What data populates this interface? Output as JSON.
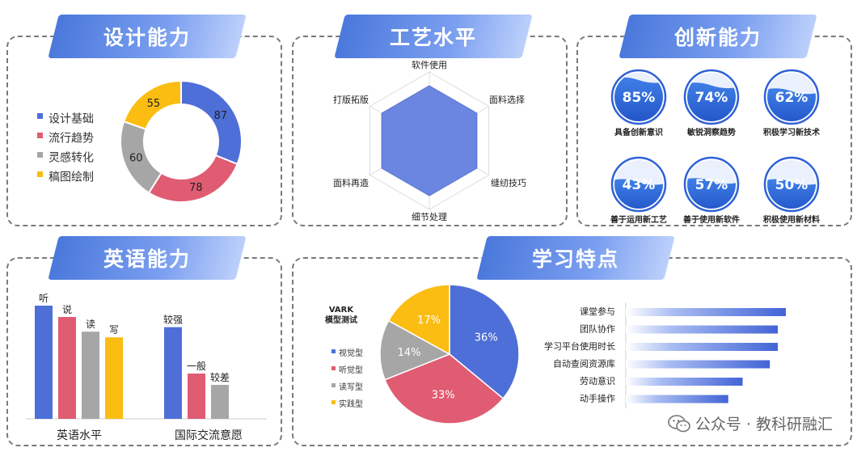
{
  "titles": {
    "design": "设计能力",
    "craft": "工艺水平",
    "innovation": "创新能力",
    "english": "英语能力",
    "learning": "学习特点"
  },
  "colors": {
    "blue": "#4e6fd8",
    "red": "#e05c72",
    "gray": "#a6a6a6",
    "yellow": "#fbbd12",
    "radar_fill": "#6b86e0"
  },
  "chart_data": [
    {
      "id": "design",
      "type": "pie",
      "donut": true,
      "categories": [
        "设计基础",
        "流行趋势",
        "灵感转化",
        "稿图绘制"
      ],
      "values": [
        87,
        78,
        60,
        55
      ],
      "legend": "left"
    },
    {
      "id": "craft",
      "type": "radar",
      "axes": [
        "软件使用",
        "面料选择",
        "缝纫技巧",
        "细节处理",
        "面料再造",
        "打版拓版"
      ],
      "values": [
        80,
        80,
        80,
        80,
        80,
        80
      ],
      "max": 100
    },
    {
      "id": "innovation",
      "type": "gauge",
      "items": [
        {
          "label": "具备创新意识",
          "value": 85,
          "text": "85%"
        },
        {
          "label": "敏锐洞察趋势",
          "value": 74,
          "text": "74%"
        },
        {
          "label": "积极学习新技术",
          "value": 62,
          "text": "62%"
        },
        {
          "label": "善于运用新工艺",
          "value": 43,
          "text": "43%"
        },
        {
          "label": "善于使用新软件",
          "value": 57,
          "text": "57%"
        },
        {
          "label": "积极使用新材料",
          "value": 50,
          "text": "50%"
        }
      ]
    },
    {
      "id": "english",
      "type": "bar",
      "groups": [
        {
          "name": "英语水平",
          "bars": [
            {
              "label": "听",
              "value": 100
            },
            {
              "label": "说",
              "value": 90
            },
            {
              "label": "读",
              "value": 77
            },
            {
              "label": "写",
              "value": 72
            }
          ]
        },
        {
          "name": "国际交流意愿",
          "bars": [
            {
              "label": "较强",
              "value": 81
            },
            {
              "label": "一般",
              "value": 40
            },
            {
              "label": "较差",
              "value": 30
            }
          ]
        }
      ]
    },
    {
      "id": "vark",
      "type": "pie",
      "title": "VARK\n模型测试",
      "categories": [
        "视觉型",
        "听觉型",
        "读写型",
        "实践型"
      ],
      "values": [
        36,
        33,
        14,
        17
      ],
      "labels": [
        "36%",
        "33%",
        "14%",
        "17%"
      ],
      "legend": "left"
    },
    {
      "id": "learning",
      "type": "bar",
      "orientation": "horizontal",
      "categories": [
        "课堂参与",
        "团队协作",
        "学习平台使用时长",
        "自动查阅资源库",
        "劳动意识",
        "动手操作"
      ],
      "values": [
        100,
        95,
        95,
        90,
        73,
        64
      ]
    }
  ],
  "watermark": {
    "text": "公众号 · 教科研融汇"
  }
}
